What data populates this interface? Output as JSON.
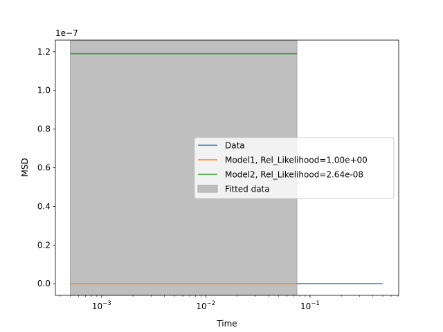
{
  "chart_data": {
    "type": "line",
    "xscale": "log",
    "xlim": [
      0.00036,
      0.71
    ],
    "ylim": [
      -0.06,
      1.26
    ],
    "y_multiplier": "1e−7",
    "xlabel": "Time",
    "ylabel": "MSD",
    "x_major_ticks": [
      {
        "value": 0.001,
        "base": "10",
        "exp": "−3"
      },
      {
        "value": 0.01,
        "base": "10",
        "exp": "−2"
      },
      {
        "value": 0.1,
        "base": "10",
        "exp": "−1"
      }
    ],
    "y_ticks": [
      {
        "value": 0.0,
        "label": "0.0"
      },
      {
        "value": 0.2,
        "label": "0.2"
      },
      {
        "value": 0.4,
        "label": "0.4"
      },
      {
        "value": 0.6,
        "label": "0.6"
      },
      {
        "value": 0.8,
        "label": "0.8"
      },
      {
        "value": 1.0,
        "label": "1.0"
      },
      {
        "value": 1.2,
        "label": "1.2"
      }
    ],
    "series": [
      {
        "name": "Data",
        "color": "#1f77b4",
        "x": [
          0.0005,
          0.5
        ],
        "y": [
          0.0,
          0.0
        ]
      },
      {
        "name": "Model1, Rel_Likelihood=1.00e+00",
        "color": "#ff7f0e",
        "x": [
          0.0005,
          0.075
        ],
        "y": [
          0.0,
          0.0
        ]
      },
      {
        "name": "Model2, Rel_Likelihood=2.64e-08",
        "color": "#2ca02c",
        "x": [
          0.0005,
          0.075
        ],
        "y": [
          1.19,
          1.19
        ]
      }
    ],
    "shaded_region": {
      "name": "Fitted data",
      "color": "#bfbfbf",
      "x": [
        0.0005,
        0.075
      ]
    },
    "grid": false,
    "legend_position": "center-right"
  }
}
